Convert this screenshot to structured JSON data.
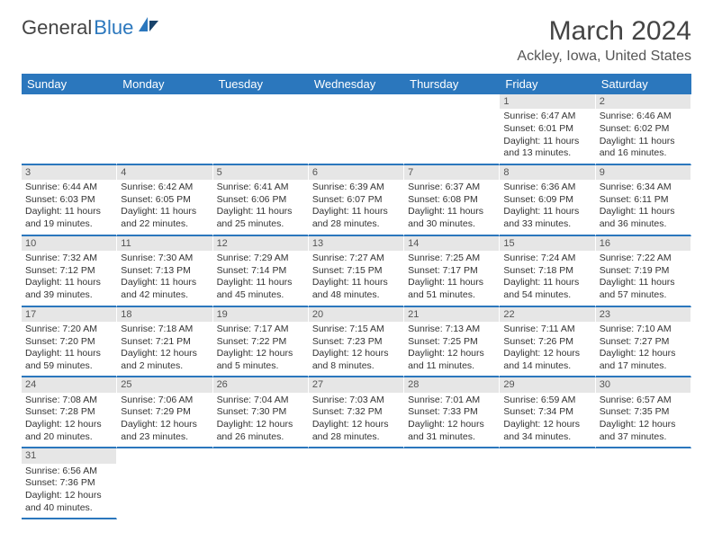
{
  "logo": {
    "text1": "General",
    "text2": "Blue"
  },
  "header": {
    "month": "March 2024",
    "location": "Ackley, Iowa, United States"
  },
  "colors": {
    "brand": "#2b77bd",
    "daynum_bg": "#e6e6e6"
  },
  "weekdays": [
    "Sunday",
    "Monday",
    "Tuesday",
    "Wednesday",
    "Thursday",
    "Friday",
    "Saturday"
  ],
  "days": [
    {
      "n": "1",
      "sr": "Sunrise: 6:47 AM",
      "ss": "Sunset: 6:01 PM",
      "d1": "Daylight: 11 hours",
      "d2": "and 13 minutes."
    },
    {
      "n": "2",
      "sr": "Sunrise: 6:46 AM",
      "ss": "Sunset: 6:02 PM",
      "d1": "Daylight: 11 hours",
      "d2": "and 16 minutes."
    },
    {
      "n": "3",
      "sr": "Sunrise: 6:44 AM",
      "ss": "Sunset: 6:03 PM",
      "d1": "Daylight: 11 hours",
      "d2": "and 19 minutes."
    },
    {
      "n": "4",
      "sr": "Sunrise: 6:42 AM",
      "ss": "Sunset: 6:05 PM",
      "d1": "Daylight: 11 hours",
      "d2": "and 22 minutes."
    },
    {
      "n": "5",
      "sr": "Sunrise: 6:41 AM",
      "ss": "Sunset: 6:06 PM",
      "d1": "Daylight: 11 hours",
      "d2": "and 25 minutes."
    },
    {
      "n": "6",
      "sr": "Sunrise: 6:39 AM",
      "ss": "Sunset: 6:07 PM",
      "d1": "Daylight: 11 hours",
      "d2": "and 28 minutes."
    },
    {
      "n": "7",
      "sr": "Sunrise: 6:37 AM",
      "ss": "Sunset: 6:08 PM",
      "d1": "Daylight: 11 hours",
      "d2": "and 30 minutes."
    },
    {
      "n": "8",
      "sr": "Sunrise: 6:36 AM",
      "ss": "Sunset: 6:09 PM",
      "d1": "Daylight: 11 hours",
      "d2": "and 33 minutes."
    },
    {
      "n": "9",
      "sr": "Sunrise: 6:34 AM",
      "ss": "Sunset: 6:11 PM",
      "d1": "Daylight: 11 hours",
      "d2": "and 36 minutes."
    },
    {
      "n": "10",
      "sr": "Sunrise: 7:32 AM",
      "ss": "Sunset: 7:12 PM",
      "d1": "Daylight: 11 hours",
      "d2": "and 39 minutes."
    },
    {
      "n": "11",
      "sr": "Sunrise: 7:30 AM",
      "ss": "Sunset: 7:13 PM",
      "d1": "Daylight: 11 hours",
      "d2": "and 42 minutes."
    },
    {
      "n": "12",
      "sr": "Sunrise: 7:29 AM",
      "ss": "Sunset: 7:14 PM",
      "d1": "Daylight: 11 hours",
      "d2": "and 45 minutes."
    },
    {
      "n": "13",
      "sr": "Sunrise: 7:27 AM",
      "ss": "Sunset: 7:15 PM",
      "d1": "Daylight: 11 hours",
      "d2": "and 48 minutes."
    },
    {
      "n": "14",
      "sr": "Sunrise: 7:25 AM",
      "ss": "Sunset: 7:17 PM",
      "d1": "Daylight: 11 hours",
      "d2": "and 51 minutes."
    },
    {
      "n": "15",
      "sr": "Sunrise: 7:24 AM",
      "ss": "Sunset: 7:18 PM",
      "d1": "Daylight: 11 hours",
      "d2": "and 54 minutes."
    },
    {
      "n": "16",
      "sr": "Sunrise: 7:22 AM",
      "ss": "Sunset: 7:19 PM",
      "d1": "Daylight: 11 hours",
      "d2": "and 57 minutes."
    },
    {
      "n": "17",
      "sr": "Sunrise: 7:20 AM",
      "ss": "Sunset: 7:20 PM",
      "d1": "Daylight: 11 hours",
      "d2": "and 59 minutes."
    },
    {
      "n": "18",
      "sr": "Sunrise: 7:18 AM",
      "ss": "Sunset: 7:21 PM",
      "d1": "Daylight: 12 hours",
      "d2": "and 2 minutes."
    },
    {
      "n": "19",
      "sr": "Sunrise: 7:17 AM",
      "ss": "Sunset: 7:22 PM",
      "d1": "Daylight: 12 hours",
      "d2": "and 5 minutes."
    },
    {
      "n": "20",
      "sr": "Sunrise: 7:15 AM",
      "ss": "Sunset: 7:23 PM",
      "d1": "Daylight: 12 hours",
      "d2": "and 8 minutes."
    },
    {
      "n": "21",
      "sr": "Sunrise: 7:13 AM",
      "ss": "Sunset: 7:25 PM",
      "d1": "Daylight: 12 hours",
      "d2": "and 11 minutes."
    },
    {
      "n": "22",
      "sr": "Sunrise: 7:11 AM",
      "ss": "Sunset: 7:26 PM",
      "d1": "Daylight: 12 hours",
      "d2": "and 14 minutes."
    },
    {
      "n": "23",
      "sr": "Sunrise: 7:10 AM",
      "ss": "Sunset: 7:27 PM",
      "d1": "Daylight: 12 hours",
      "d2": "and 17 minutes."
    },
    {
      "n": "24",
      "sr": "Sunrise: 7:08 AM",
      "ss": "Sunset: 7:28 PM",
      "d1": "Daylight: 12 hours",
      "d2": "and 20 minutes."
    },
    {
      "n": "25",
      "sr": "Sunrise: 7:06 AM",
      "ss": "Sunset: 7:29 PM",
      "d1": "Daylight: 12 hours",
      "d2": "and 23 minutes."
    },
    {
      "n": "26",
      "sr": "Sunrise: 7:04 AM",
      "ss": "Sunset: 7:30 PM",
      "d1": "Daylight: 12 hours",
      "d2": "and 26 minutes."
    },
    {
      "n": "27",
      "sr": "Sunrise: 7:03 AM",
      "ss": "Sunset: 7:32 PM",
      "d1": "Daylight: 12 hours",
      "d2": "and 28 minutes."
    },
    {
      "n": "28",
      "sr": "Sunrise: 7:01 AM",
      "ss": "Sunset: 7:33 PM",
      "d1": "Daylight: 12 hours",
      "d2": "and 31 minutes."
    },
    {
      "n": "29",
      "sr": "Sunrise: 6:59 AM",
      "ss": "Sunset: 7:34 PM",
      "d1": "Daylight: 12 hours",
      "d2": "and 34 minutes."
    },
    {
      "n": "30",
      "sr": "Sunrise: 6:57 AM",
      "ss": "Sunset: 7:35 PM",
      "d1": "Daylight: 12 hours",
      "d2": "and 37 minutes."
    },
    {
      "n": "31",
      "sr": "Sunrise: 6:56 AM",
      "ss": "Sunset: 7:36 PM",
      "d1": "Daylight: 12 hours",
      "d2": "and 40 minutes."
    }
  ],
  "grid": {
    "leading_blanks": 5,
    "trailing_blanks": 6
  }
}
